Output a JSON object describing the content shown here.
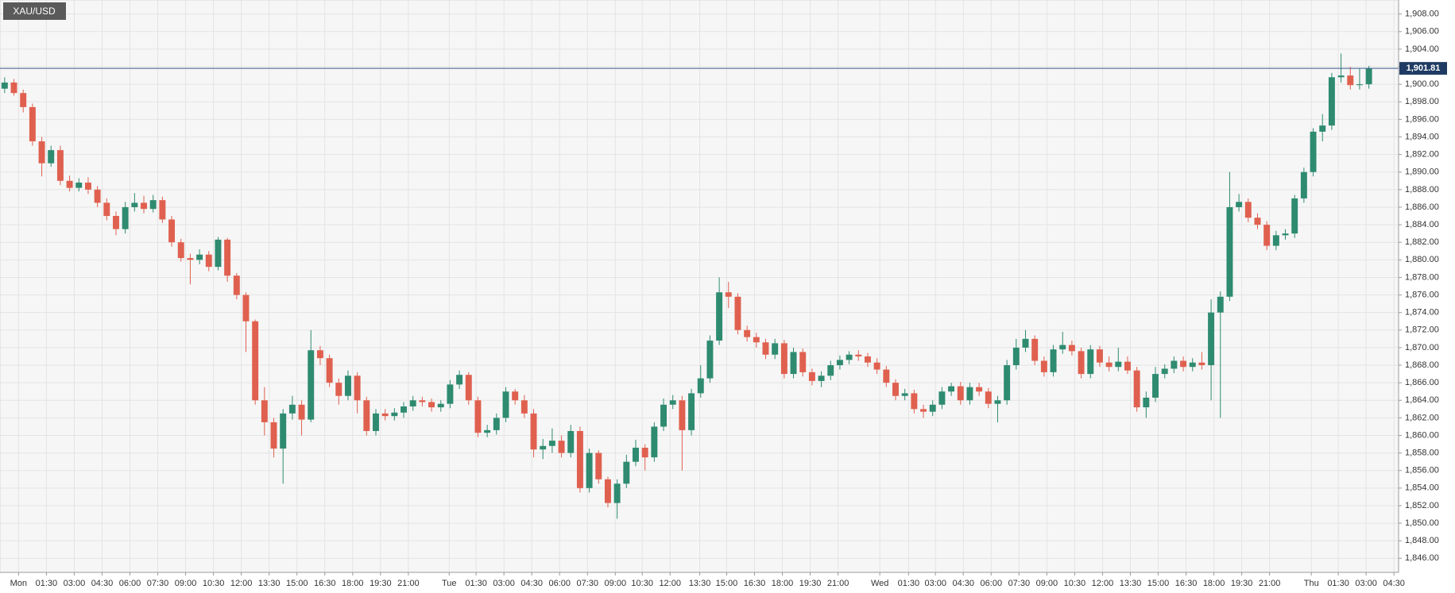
{
  "chart_data": {
    "type": "candlestick",
    "title": "XAU/USD",
    "up_color": "#2e8b70",
    "down_color": "#e0604f",
    "grid": true,
    "xlim": [
      -0.5,
      150.2
    ],
    "ylim": [
      1844.4,
      1909.6
    ],
    "price_line": {
      "value": 1901.81,
      "label": "1,901.81",
      "color": "#3b5b8e"
    },
    "xticks": [
      {
        "value": 1.5,
        "label": "Mon"
      },
      {
        "value": 4.5,
        "label": "01:30"
      },
      {
        "value": 7.5,
        "label": "03:00"
      },
      {
        "value": 10.5,
        "label": "04:30"
      },
      {
        "value": 13.5,
        "label": "06:00"
      },
      {
        "value": 16.5,
        "label": "07:30"
      },
      {
        "value": 19.5,
        "label": "09:00"
      },
      {
        "value": 22.5,
        "label": "10:30"
      },
      {
        "value": 25.5,
        "label": "12:00"
      },
      {
        "value": 28.5,
        "label": "13:30"
      },
      {
        "value": 31.5,
        "label": "15:00"
      },
      {
        "value": 34.5,
        "label": "16:30"
      },
      {
        "value": 37.5,
        "label": "18:00"
      },
      {
        "value": 40.5,
        "label": "19:30"
      },
      {
        "value": 43.5,
        "label": "21:00"
      },
      {
        "value": 47.9,
        "label": "Tue"
      },
      {
        "value": 50.8,
        "label": "01:30"
      },
      {
        "value": 53.8,
        "label": "03:00"
      },
      {
        "value": 56.8,
        "label": "04:30"
      },
      {
        "value": 59.8,
        "label": "06:00"
      },
      {
        "value": 62.8,
        "label": "07:30"
      },
      {
        "value": 65.8,
        "label": "09:00"
      },
      {
        "value": 68.7,
        "label": "10:30"
      },
      {
        "value": 71.7,
        "label": "12:00"
      },
      {
        "value": 74.9,
        "label": "13:30"
      },
      {
        "value": 77.8,
        "label": "15:00"
      },
      {
        "value": 80.8,
        "label": "16:30"
      },
      {
        "value": 83.8,
        "label": "18:00"
      },
      {
        "value": 86.8,
        "label": "19:30"
      },
      {
        "value": 89.8,
        "label": "21:00"
      },
      {
        "value": 94.3,
        "label": "Wed"
      },
      {
        "value": 97.4,
        "label": "01:30"
      },
      {
        "value": 100.3,
        "label": "03:00"
      },
      {
        "value": 103.3,
        "label": "04:30"
      },
      {
        "value": 106.3,
        "label": "06:00"
      },
      {
        "value": 109.3,
        "label": "07:30"
      },
      {
        "value": 112.3,
        "label": "09:00"
      },
      {
        "value": 115.3,
        "label": "10:30"
      },
      {
        "value": 118.3,
        "label": "12:00"
      },
      {
        "value": 121.3,
        "label": "13:30"
      },
      {
        "value": 124.3,
        "label": "15:00"
      },
      {
        "value": 127.3,
        "label": "16:30"
      },
      {
        "value": 130.3,
        "label": "18:00"
      },
      {
        "value": 133.3,
        "label": "19:30"
      },
      {
        "value": 136.3,
        "label": "21:00"
      },
      {
        "value": 140.8,
        "label": "Thu"
      },
      {
        "value": 143.7,
        "label": "01:30"
      },
      {
        "value": 146.7,
        "label": "03:00"
      },
      {
        "value": 149.7,
        "label": "04:30"
      }
    ],
    "yticks": [
      {
        "value": 1846,
        "label": "1,846.00"
      },
      {
        "value": 1848,
        "label": "1,848.00"
      },
      {
        "value": 1850,
        "label": "1,850.00"
      },
      {
        "value": 1852,
        "label": "1,852.00"
      },
      {
        "value": 1854,
        "label": "1,854.00"
      },
      {
        "value": 1856,
        "label": "1,856.00"
      },
      {
        "value": 1858,
        "label": "1,858.00"
      },
      {
        "value": 1860,
        "label": "1,860.00"
      },
      {
        "value": 1862,
        "label": "1,862.00"
      },
      {
        "value": 1864,
        "label": "1,864.00"
      },
      {
        "value": 1866,
        "label": "1,866.00"
      },
      {
        "value": 1868,
        "label": "1,868.00"
      },
      {
        "value": 1870,
        "label": "1,870.00"
      },
      {
        "value": 1872,
        "label": "1,872.00"
      },
      {
        "value": 1874,
        "label": "1,874.00"
      },
      {
        "value": 1876,
        "label": "1,876.00"
      },
      {
        "value": 1878,
        "label": "1,878.00"
      },
      {
        "value": 1880,
        "label": "1,880.00"
      },
      {
        "value": 1882,
        "label": "1,882.00"
      },
      {
        "value": 1884,
        "label": "1,884.00"
      },
      {
        "value": 1886,
        "label": "1,886.00"
      },
      {
        "value": 1888,
        "label": "1,888.00"
      },
      {
        "value": 1890,
        "label": "1,890.00"
      },
      {
        "value": 1892,
        "label": "1,892.00"
      },
      {
        "value": 1894,
        "label": "1,894.00"
      },
      {
        "value": 1896,
        "label": "1,896.00"
      },
      {
        "value": 1898,
        "label": "1,898.00"
      },
      {
        "value": 1900,
        "label": "1,900.00"
      },
      {
        "value": 1902,
        "label": "1,902.00"
      },
      {
        "value": 1904,
        "label": "1,904.00"
      },
      {
        "value": 1906,
        "label": "1,906.00"
      },
      {
        "value": 1908,
        "label": "1,908.00"
      }
    ],
    "open": [
      1899.5,
      1900.2,
      1899,
      1897.4,
      1893.5,
      1891,
      1892.5,
      1889,
      1888.2,
      1888.8,
      1888,
      1886.5,
      1885,
      1883.5,
      1886,
      1886.5,
      1885.8,
      1886.8,
      1884.6,
      1882,
      1880.2,
      1880,
      1880.6,
      1879.2,
      1882.3,
      1878.2,
      1876,
      1873,
      1864,
      1861.5,
      1858.5,
      1862.5,
      1863.5,
      1861.8,
      1869.7,
      1868.8,
      1866,
      1864.5,
      1866.8,
      1864,
      1860.5,
      1862.5,
      1862.2,
      1862.6,
      1863.3,
      1864,
      1863.8,
      1863.2,
      1863.6,
      1865.8,
      1866.9,
      1864,
      1860.3,
      1860.6,
      1862,
      1865,
      1864,
      1862.5,
      1858.4,
      1858.8,
      1859.4,
      1858,
      1860.5,
      1854,
      1858,
      1855,
      1852.3,
      1854.5,
      1857,
      1858.6,
      1857.5,
      1861,
      1863.5,
      1864,
      1860.6,
      1864.8,
      1866.5,
      1870.8,
      1876.3,
      1875.8,
      1872,
      1871.2,
      1870.6,
      1869.2,
      1870.5,
      1867,
      1869.5,
      1867.2,
      1866.2,
      1866.8,
      1868,
      1868.6,
      1869.2,
      1869,
      1868.3,
      1867.5,
      1866,
      1864.5,
      1864.8,
      1863,
      1862.7,
      1863.5,
      1865,
      1865.6,
      1864,
      1865.5,
      1865,
      1863.6,
      1864,
      1868,
      1870,
      1871,
      1868.5,
      1867.2,
      1869.8,
      1870.3,
      1869.6,
      1867,
      1869.8,
      1868.3,
      1867.8,
      1868.4,
      1867.4,
      1863.2,
      1864.3,
      1867,
      1867.6,
      1868.5,
      1867.8,
      1868.3,
      1868,
      1874,
      1875.8,
      1886,
      1886.6,
      1884.8,
      1884,
      1881.6,
      1882.8,
      1883,
      1887,
      1890,
      1894.6,
      1895.3,
      1900.8,
      1901,
      1899.9,
      1900
    ],
    "high": [
      1900.8,
      1900.6,
      1899.4,
      1897.8,
      1894,
      1893,
      1893,
      1889.6,
      1889.3,
      1889.4,
      1888.4,
      1887,
      1885.5,
      1886.6,
      1887.6,
      1887.3,
      1887.4,
      1887.2,
      1885,
      1882.4,
      1880.7,
      1881.2,
      1881,
      1882.6,
      1882.5,
      1878.5,
      1876.3,
      1873.2,
      1865.5,
      1862,
      1863,
      1864.5,
      1864,
      1872,
      1870.2,
      1869.2,
      1866.5,
      1867.4,
      1867.2,
      1864.4,
      1863,
      1863,
      1863.1,
      1863.8,
      1864.5,
      1864.4,
      1864.2,
      1864,
      1866.3,
      1867.4,
      1867.2,
      1864.4,
      1861.2,
      1862.5,
      1865.5,
      1865.3,
      1864.6,
      1863,
      1859.6,
      1860.8,
      1860,
      1861.2,
      1861,
      1858.5,
      1858.3,
      1855.3,
      1855,
      1857.8,
      1859.5,
      1859,
      1861.5,
      1864.2,
      1864.6,
      1864.5,
      1865.3,
      1868,
      1871.4,
      1878,
      1877.5,
      1876.2,
      1872.5,
      1871.7,
      1871,
      1871,
      1870.9,
      1870,
      1869.9,
      1867.6,
      1867.3,
      1868.5,
      1869.1,
      1869.6,
      1869.7,
      1869.4,
      1868.8,
      1867.9,
      1866.4,
      1865.3,
      1865.2,
      1863.5,
      1864,
      1865.5,
      1866,
      1866.1,
      1866,
      1866,
      1865.4,
      1864.5,
      1868.6,
      1871,
      1872,
      1871.4,
      1869,
      1870.3,
      1871.8,
      1870.8,
      1870,
      1870.3,
      1870.2,
      1869,
      1870,
      1869,
      1867.8,
      1865,
      1867.8,
      1868.1,
      1869,
      1869,
      1868.8,
      1869.5,
      1875.5,
      1876.4,
      1890,
      1887.5,
      1887,
      1885.3,
      1884.4,
      1883.3,
      1883.5,
      1887.4,
      1890.5,
      1895,
      1896.6,
      1901.3,
      1903.5,
      1902,
      1901.8,
      1902.1
    ],
    "low": [
      1899,
      1898.7,
      1896.8,
      1893,
      1889.5,
      1890.6,
      1888.5,
      1887.8,
      1887.8,
      1887.5,
      1886,
      1884.5,
      1882.8,
      1883,
      1885.5,
      1885.3,
      1885.4,
      1884.2,
      1881.5,
      1879.8,
      1877.2,
      1879.5,
      1878.7,
      1878.8,
      1877.5,
      1875.5,
      1869.5,
      1863.5,
      1860,
      1857.5,
      1854.5,
      1861.8,
      1860,
      1861.5,
      1868,
      1865.5,
      1863.5,
      1864,
      1862.5,
      1860,
      1860,
      1861.7,
      1861.7,
      1862,
      1862.8,
      1863.3,
      1862.7,
      1862.7,
      1863.1,
      1865.3,
      1863.5,
      1859.8,
      1859.8,
      1860.1,
      1861.5,
      1863.5,
      1862,
      1857.5,
      1857.3,
      1858,
      1857.5,
      1857.5,
      1853.5,
      1853.5,
      1854.5,
      1851.8,
      1850.5,
      1854,
      1856.5,
      1856,
      1857,
      1860.5,
      1863,
      1856,
      1860,
      1864.3,
      1866,
      1870.3,
      1874.5,
      1871.5,
      1870.7,
      1870,
      1868.7,
      1868.7,
      1866.5,
      1866.5,
      1866.7,
      1865.7,
      1865.5,
      1866.3,
      1867.5,
      1868.1,
      1868.5,
      1867.8,
      1867,
      1865.5,
      1864,
      1864,
      1862.5,
      1862,
      1862.2,
      1863,
      1864.5,
      1863.5,
      1863.5,
      1864.5,
      1863.1,
      1861.5,
      1863.5,
      1867.5,
      1869.5,
      1868,
      1866.7,
      1866.7,
      1869.3,
      1869.1,
      1866.5,
      1866.5,
      1867.8,
      1867.3,
      1867.3,
      1867,
      1862.7,
      1862,
      1863.8,
      1866.5,
      1867.1,
      1867.3,
      1867.3,
      1867.5,
      1864,
      1862,
      1875.3,
      1885.5,
      1884.3,
      1883.5,
      1881.1,
      1881.1,
      1882.3,
      1882.5,
      1886.5,
      1889.5,
      1893.5,
      1894.8,
      1900.2,
      1899.4,
      1899.4,
      1899.5
    ],
    "close": [
      1900.2,
      1899,
      1897.4,
      1893.5,
      1891,
      1892.5,
      1889,
      1888.2,
      1888.8,
      1888,
      1886.5,
      1885,
      1883.5,
      1886,
      1886.5,
      1885.8,
      1886.8,
      1884.6,
      1882,
      1880.2,
      1880,
      1880.6,
      1879.2,
      1882.3,
      1878.2,
      1876,
      1873,
      1864,
      1861.5,
      1858.5,
      1862.5,
      1863.5,
      1861.8,
      1869.7,
      1868.8,
      1866,
      1864.5,
      1866.8,
      1864,
      1860.5,
      1862.5,
      1862.2,
      1862.6,
      1863.3,
      1864,
      1863.8,
      1863.2,
      1863.6,
      1865.8,
      1866.9,
      1864,
      1860.3,
      1860.6,
      1862,
      1865,
      1864,
      1862.5,
      1858.4,
      1858.8,
      1859.4,
      1858,
      1860.5,
      1854,
      1858,
      1855,
      1852.3,
      1854.5,
      1857,
      1858.6,
      1857.5,
      1861,
      1863.5,
      1864,
      1860.6,
      1864.8,
      1866.5,
      1870.8,
      1876.3,
      1875.8,
      1872,
      1871.2,
      1870.6,
      1869.2,
      1870.5,
      1867,
      1869.5,
      1867.2,
      1866.2,
      1866.8,
      1868,
      1868.6,
      1869.2,
      1869,
      1868.3,
      1867.5,
      1866,
      1864.5,
      1864.8,
      1863,
      1862.7,
      1863.5,
      1865,
      1865.6,
      1864,
      1865.5,
      1865,
      1863.6,
      1864,
      1868,
      1870,
      1871,
      1868.5,
      1867.2,
      1869.8,
      1870.3,
      1869.6,
      1867,
      1869.8,
      1868.3,
      1867.8,
      1868.4,
      1867.4,
      1863.2,
      1864.3,
      1867,
      1867.6,
      1868.5,
      1867.8,
      1868.3,
      1868,
      1874,
      1875.8,
      1886,
      1886.6,
      1884.8,
      1884,
      1881.6,
      1882.8,
      1883,
      1887,
      1890,
      1894.6,
      1895.3,
      1900.8,
      1901,
      1899.9,
      1900,
      1901.81
    ]
  }
}
